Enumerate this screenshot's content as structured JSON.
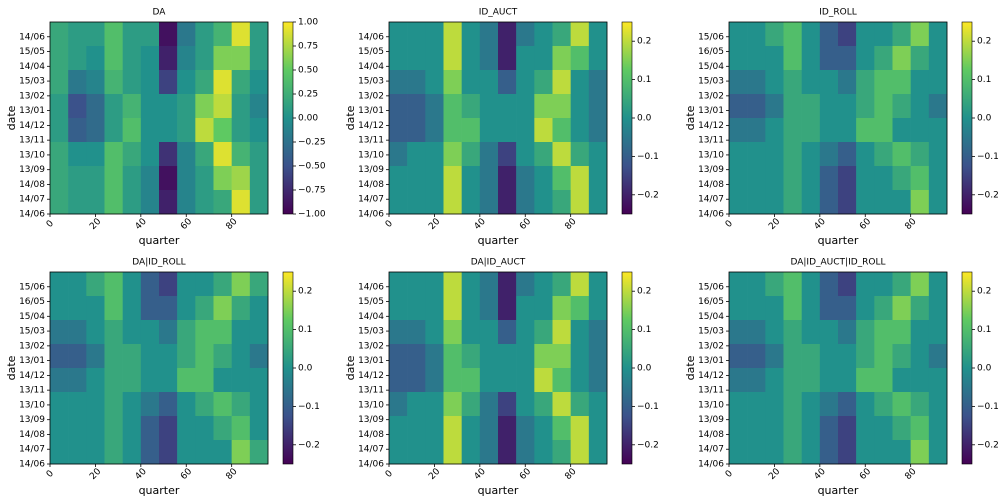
{
  "chart_data": [
    {
      "type": "heatmap",
      "title": "DA",
      "x_label": "quarter",
      "y_label": "date",
      "colormap": "viridis",
      "xlim": [
        0,
        96
      ],
      "xticks": [
        0,
        20,
        40,
        60,
        80
      ],
      "yticks": [
        "14/06",
        "14/07",
        "14/08",
        "13/09",
        "13/10",
        "13/11",
        "14/12",
        "13/01",
        "13/02",
        "15/03",
        "14/04",
        "15/05",
        "14/06"
      ],
      "clim": [
        -1,
        1
      ],
      "cticks": [
        {
          "value": -1,
          "label": "−1.00"
        },
        {
          "value": -0.75,
          "label": "−0.75"
        },
        {
          "value": -0.5,
          "label": "−0.50"
        },
        {
          "value": -0.25,
          "label": "−0.25"
        },
        {
          "value": 0,
          "label": "0.00"
        },
        {
          "value": 0.25,
          "label": "0.25"
        },
        {
          "value": 0.5,
          "label": "0.50"
        },
        {
          "value": 0.75,
          "label": "0.75"
        },
        {
          "value": 1,
          "label": "1.00"
        }
      ],
      "z": [
        [
          0.2,
          0.1,
          0.1,
          0.4,
          0.1,
          0.1,
          -0.9,
          -0.2,
          0.1,
          0.3,
          0.9,
          0.1
        ],
        [
          0.2,
          0.1,
          0.0,
          0.4,
          0.1,
          0.0,
          -0.8,
          -0.1,
          0.1,
          0.6,
          0.6,
          0.1
        ],
        [
          0.2,
          -0.2,
          -0.1,
          0.3,
          0.1,
          0.0,
          -0.6,
          0.0,
          0.2,
          0.9,
          0.2,
          0.0
        ],
        [
          0.1,
          -0.5,
          -0.3,
          0.1,
          0.3,
          0.0,
          0.0,
          0.1,
          0.6,
          0.8,
          0.1,
          -0.1
        ],
        [
          0.1,
          -0.4,
          -0.3,
          0.1,
          0.4,
          0.0,
          0.0,
          0.1,
          0.8,
          0.5,
          0.1,
          0.0
        ],
        [
          0.2,
          0.0,
          0.0,
          0.4,
          0.2,
          0.0,
          -0.7,
          -0.1,
          0.2,
          0.9,
          0.3,
          0.1
        ],
        [
          0.2,
          0.1,
          0.1,
          0.4,
          0.1,
          -0.1,
          -0.9,
          -0.1,
          0.1,
          0.6,
          0.7,
          0.1
        ],
        [
          0.2,
          0.1,
          0.1,
          0.4,
          0.1,
          -0.1,
          -0.8,
          -0.1,
          0.1,
          0.2,
          0.9,
          0.1
        ]
      ]
    },
    {
      "type": "heatmap",
      "title": "ID_AUCT",
      "x_label": "quarter",
      "y_label": "date",
      "colormap": "viridis",
      "xlim": [
        0,
        96
      ],
      "xticks": [
        0,
        20,
        40,
        60,
        80
      ],
      "yticks": [
        "14/06",
        "14/07",
        "14/08",
        "13/09",
        "13/10",
        "13/11",
        "14/12",
        "13/01",
        "13/02",
        "15/03",
        "14/04",
        "15/05",
        "14/06"
      ],
      "clim": [
        -0.25,
        0.25
      ],
      "cticks": [
        {
          "value": -0.2,
          "label": "−0.2"
        },
        {
          "value": -0.1,
          "label": "−0.1"
        },
        {
          "value": 0,
          "label": "0.0"
        },
        0.1,
        0.2
      ],
      "z": [
        [
          0,
          0,
          0,
          0.2,
          0,
          -0.05,
          -0.2,
          -0.05,
          0,
          0.05,
          0.2,
          0
        ],
        [
          0,
          0,
          0,
          0.2,
          0,
          -0.05,
          -0.2,
          0,
          0,
          0.15,
          0.1,
          0
        ],
        [
          -0.05,
          -0.05,
          0,
          0.15,
          0,
          0,
          -0.1,
          0,
          0.05,
          0.2,
          0,
          -0.05
        ],
        [
          -0.1,
          -0.1,
          -0.05,
          0.1,
          0.05,
          0,
          0,
          0,
          0.15,
          0.15,
          0,
          -0.05
        ],
        [
          -0.1,
          -0.1,
          -0.05,
          0.1,
          0.1,
          0,
          0,
          0,
          0.2,
          0.1,
          0,
          -0.05
        ],
        [
          -0.05,
          0,
          0,
          0.15,
          0.05,
          -0.05,
          -0.15,
          0,
          0.05,
          0.2,
          0.05,
          0
        ],
        [
          0,
          0,
          0,
          0.2,
          0,
          -0.05,
          -0.2,
          -0.05,
          0,
          0.1,
          0.2,
          0
        ],
        [
          0,
          0,
          0,
          0.2,
          0,
          -0.05,
          -0.2,
          -0.05,
          0,
          0.05,
          0.2,
          0
        ]
      ]
    },
    {
      "type": "heatmap",
      "title": "ID_ROLL",
      "x_label": "quarter",
      "y_label": "date",
      "colormap": "viridis",
      "xlim": [
        0,
        96
      ],
      "xticks": [
        0,
        20,
        40,
        60,
        80
      ],
      "yticks": [
        "14/06",
        "14/07",
        "14/08",
        "13/09",
        "13/10",
        "13/11",
        "14/12",
        "13/01",
        "13/02",
        "15/03",
        "15/04",
        "16/05",
        "15/06"
      ],
      "clim": [
        -0.25,
        0.25
      ],
      "cticks": [
        {
          "value": -0.2,
          "label": "−0.2"
        },
        {
          "value": -0.1,
          "label": "−0.1"
        },
        {
          "value": 0,
          "label": "0.0"
        },
        0.1,
        0.2
      ],
      "z": [
        [
          0,
          0,
          0.05,
          0.1,
          0,
          -0.1,
          -0.15,
          0,
          0,
          0.05,
          0.15,
          0
        ],
        [
          0,
          0,
          0,
          0.1,
          0,
          -0.1,
          -0.1,
          0,
          0.05,
          0.15,
          0.05,
          0
        ],
        [
          -0.05,
          -0.05,
          0,
          0.05,
          0,
          0,
          -0.05,
          0.05,
          0.1,
          0.1,
          0,
          0
        ],
        [
          -0.1,
          -0.1,
          -0.05,
          0.05,
          0.05,
          0,
          0,
          0.05,
          0.1,
          0.05,
          0,
          -0.05
        ],
        [
          -0.05,
          -0.05,
          0,
          0.05,
          0.05,
          0,
          0,
          0.1,
          0.1,
          0,
          0,
          0
        ],
        [
          0,
          0,
          0,
          0.05,
          0,
          -0.05,
          -0.1,
          0,
          0.05,
          0.1,
          0.05,
          0
        ],
        [
          0,
          0,
          0,
          0.05,
          0,
          -0.1,
          -0.15,
          0,
          0,
          0.05,
          0.1,
          0
        ],
        [
          0,
          0,
          0,
          0.05,
          0,
          -0.1,
          -0.15,
          0,
          0,
          0,
          0.15,
          0
        ]
      ]
    },
    {
      "type": "heatmap",
      "title": "DA|ID_ROLL",
      "x_label": "quarter",
      "y_label": "date",
      "colormap": "viridis",
      "xlim": [
        0,
        96
      ],
      "xticks": [
        0,
        20,
        40,
        60,
        80
      ],
      "yticks": [
        "14/06",
        "14/07",
        "14/08",
        "13/09",
        "13/10",
        "13/11",
        "14/12",
        "13/01",
        "13/02",
        "15/03",
        "15/04",
        "16/05",
        "15/06"
      ],
      "clim": [
        -0.25,
        0.25
      ],
      "cticks": [
        {
          "value": -0.2,
          "label": "−0.2"
        },
        {
          "value": -0.1,
          "label": "−0.1"
        },
        {
          "value": 0,
          "label": "0.0"
        },
        0.1,
        0.2
      ],
      "z": [
        [
          0,
          0,
          0.05,
          0.1,
          0,
          -0.1,
          -0.15,
          0,
          0,
          0.05,
          0.15,
          0.05
        ],
        [
          0,
          0,
          0,
          0.1,
          0,
          -0.1,
          -0.1,
          0,
          0.05,
          0.15,
          0.05,
          0
        ],
        [
          -0.05,
          -0.05,
          0,
          0.05,
          0,
          0,
          -0.05,
          0.05,
          0.1,
          0.1,
          0,
          0
        ],
        [
          -0.1,
          -0.1,
          -0.05,
          0.05,
          0.05,
          0,
          0,
          0.05,
          0.1,
          0.05,
          0,
          -0.05
        ],
        [
          -0.05,
          -0.05,
          0,
          0.05,
          0.05,
          0,
          0,
          0.1,
          0.1,
          0,
          0,
          0
        ],
        [
          0,
          0,
          0,
          0.05,
          0,
          -0.05,
          -0.1,
          0,
          0.05,
          0.1,
          0.05,
          0
        ],
        [
          0,
          0,
          0,
          0.05,
          0,
          -0.1,
          -0.15,
          0,
          0,
          0.05,
          0.1,
          0
        ],
        [
          0,
          0,
          0,
          0.05,
          0,
          -0.1,
          -0.15,
          0,
          0,
          0,
          0.15,
          0.05
        ]
      ]
    },
    {
      "type": "heatmap",
      "title": "DA|ID_AUCT",
      "x_label": "quarter",
      "y_label": "date",
      "colormap": "viridis",
      "xlim": [
        0,
        96
      ],
      "xticks": [
        0,
        20,
        40,
        60,
        80
      ],
      "yticks": [
        "14/06",
        "14/07",
        "14/08",
        "13/09",
        "13/10",
        "13/11",
        "14/12",
        "13/01",
        "13/02",
        "15/03",
        "14/04",
        "15/05",
        "14/06"
      ],
      "clim": [
        -0.25,
        0.25
      ],
      "cticks": [
        {
          "value": -0.2,
          "label": "−0.2"
        },
        {
          "value": -0.1,
          "label": "−0.1"
        },
        {
          "value": 0,
          "label": "0.0"
        },
        0.1,
        0.2
      ],
      "z": [
        [
          0,
          0,
          0,
          0.2,
          0,
          -0.05,
          -0.2,
          -0.05,
          0,
          0.05,
          0.2,
          0
        ],
        [
          0,
          0,
          0,
          0.2,
          0,
          -0.05,
          -0.2,
          0,
          0,
          0.15,
          0.1,
          0
        ],
        [
          -0.05,
          -0.05,
          0,
          0.15,
          0,
          0,
          -0.1,
          0,
          0.05,
          0.2,
          0,
          -0.05
        ],
        [
          -0.1,
          -0.1,
          -0.05,
          0.1,
          0.05,
          0,
          0,
          0,
          0.15,
          0.15,
          0,
          -0.05
        ],
        [
          -0.1,
          -0.1,
          -0.05,
          0.1,
          0.1,
          0,
          0,
          0,
          0.2,
          0.1,
          0,
          -0.05
        ],
        [
          -0.05,
          0,
          0,
          0.15,
          0.05,
          -0.05,
          -0.15,
          0,
          0.05,
          0.2,
          0.05,
          0
        ],
        [
          0,
          0,
          0,
          0.2,
          0,
          -0.05,
          -0.2,
          -0.05,
          0,
          0.1,
          0.2,
          0
        ],
        [
          0,
          0,
          0,
          0.2,
          0,
          -0.05,
          -0.2,
          -0.05,
          0,
          0.05,
          0.2,
          0
        ]
      ]
    },
    {
      "type": "heatmap",
      "title": "DA|ID_AUCT|ID_ROLL",
      "x_label": "quarter",
      "y_label": "date",
      "colormap": "viridis",
      "xlim": [
        0,
        96
      ],
      "xticks": [
        0,
        20,
        40,
        60,
        80
      ],
      "yticks": [
        "14/06",
        "14/07",
        "14/08",
        "13/09",
        "13/10",
        "13/11",
        "14/12",
        "13/01",
        "13/02",
        "15/03",
        "15/04",
        "16/05",
        "15/06"
      ],
      "clim": [
        -0.25,
        0.25
      ],
      "cticks": [
        {
          "value": -0.2,
          "label": "−0.2"
        },
        {
          "value": -0.1,
          "label": "−0.1"
        },
        {
          "value": 0,
          "label": "0.0"
        },
        0.1,
        0.2
      ],
      "z": [
        [
          0,
          0,
          0.05,
          0.1,
          0,
          -0.1,
          -0.15,
          0,
          0,
          0.05,
          0.15,
          0
        ],
        [
          0,
          0,
          0,
          0.1,
          0,
          -0.1,
          -0.1,
          0,
          0.05,
          0.15,
          0.05,
          0
        ],
        [
          -0.05,
          -0.05,
          0,
          0.05,
          0,
          0,
          -0.05,
          0.05,
          0.1,
          0.1,
          0,
          0
        ],
        [
          -0.1,
          -0.1,
          -0.05,
          0.05,
          0.05,
          0,
          0,
          0.05,
          0.1,
          0.05,
          0,
          -0.05
        ],
        [
          -0.05,
          -0.05,
          0,
          0.05,
          0.05,
          0,
          0,
          0.1,
          0.1,
          0,
          0,
          0
        ],
        [
          0,
          0,
          0,
          0.05,
          0,
          -0.05,
          -0.1,
          0,
          0.05,
          0.1,
          0.05,
          0
        ],
        [
          0,
          0,
          0,
          0.05,
          0,
          -0.1,
          -0.15,
          0,
          0,
          0.05,
          0.1,
          0
        ],
        [
          0,
          0,
          0,
          0.05,
          0,
          -0.1,
          -0.15,
          0,
          0,
          0,
          0.15,
          0
        ]
      ]
    }
  ]
}
